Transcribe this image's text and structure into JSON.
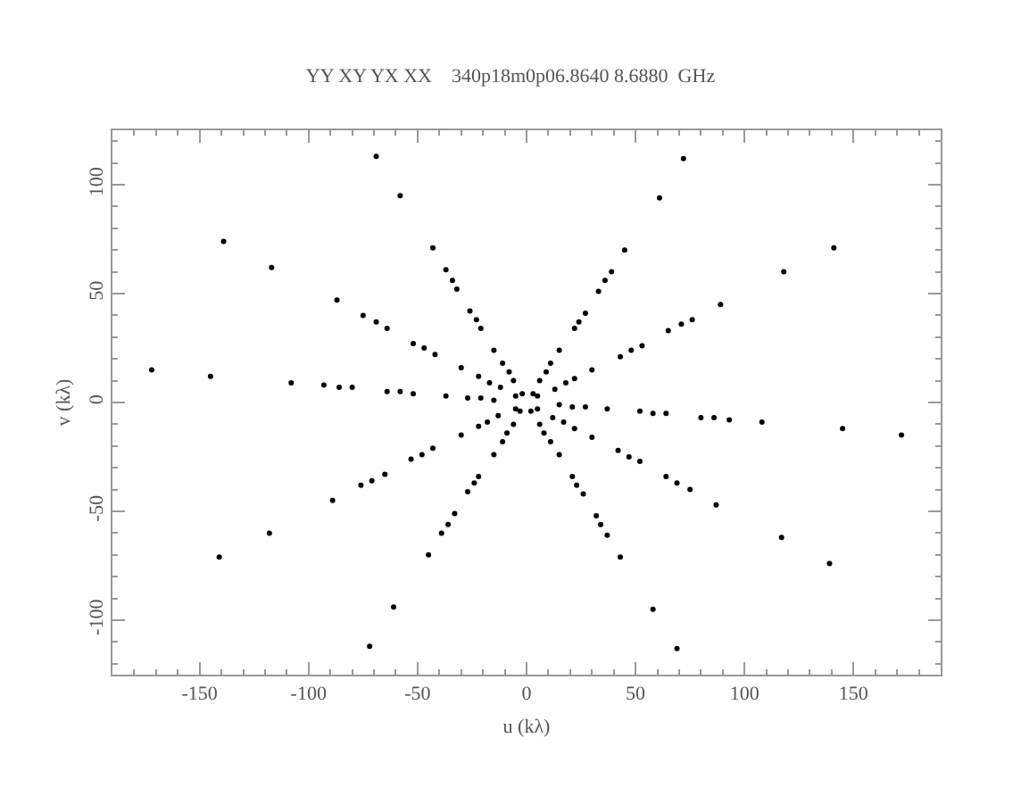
{
  "chart_data": {
    "type": "scatter",
    "title": "YY XY YX XX    340p18m0p06.8640 8.6880  GHz",
    "xlabel": "u (kλ)",
    "ylabel": "v (kλ)",
    "x": [
      -69,
      -58,
      -43,
      -37,
      -34,
      -32,
      -26,
      -23,
      -21,
      -15,
      -11,
      -8,
      -6,
      -5,
      -2,
      -139,
      -117,
      -87,
      -75,
      -69,
      -64,
      -52,
      -47,
      -42,
      -30,
      -22,
      -17,
      -12,
      -172,
      -145,
      -108,
      -93,
      -86,
      -80,
      -64,
      -58,
      -52,
      -37,
      -27,
      -21,
      -15,
      72,
      61,
      45,
      39,
      36,
      33,
      27,
      24,
      22,
      15,
      11,
      9,
      6,
      5,
      3,
      141,
      118,
      89,
      76,
      71,
      65,
      53,
      48,
      43,
      30,
      22,
      18,
      13,
      69,
      58,
      43,
      37,
      34,
      32,
      26,
      23,
      21,
      15,
      11,
      8,
      6,
      5,
      2,
      139,
      117,
      87,
      75,
      69,
      64,
      52,
      47,
      42,
      30,
      22,
      17,
      12,
      172,
      145,
      108,
      93,
      86,
      80,
      64,
      58,
      52,
      37,
      27,
      21,
      15,
      -72,
      -61,
      -45,
      -39,
      -36,
      -33,
      -27,
      -24,
      -22,
      -15,
      -11,
      -9,
      -6,
      -5,
      -3,
      -141,
      -118,
      -89,
      -76,
      -71,
      -65,
      -53,
      -48,
      -43,
      -30,
      -22,
      -18,
      -13
    ],
    "series": [
      {
        "color": "#000000",
        "values": [
          113,
          95,
          71,
          61,
          56,
          52,
          42,
          38,
          34,
          24,
          18,
          14,
          10,
          3,
          4,
          74,
          62,
          47,
          40,
          37,
          34,
          27,
          25,
          22,
          16,
          12,
          9,
          7,
          15,
          12,
          9,
          8,
          7,
          7,
          5,
          5,
          4,
          3,
          2,
          2,
          1,
          112,
          94,
          70,
          60,
          56,
          51,
          41,
          37,
          34,
          24,
          18,
          14,
          10,
          3,
          4,
          71,
          60,
          45,
          38,
          36,
          33,
          26,
          24,
          21,
          15,
          11,
          9,
          6,
          -113,
          -95,
          -71,
          -61,
          -56,
          -52,
          -42,
          -38,
          -34,
          -24,
          -18,
          -14,
          -10,
          -3,
          -4,
          -74,
          -62,
          -47,
          -40,
          -37,
          -34,
          -27,
          -25,
          -22,
          -16,
          -12,
          -9,
          -7,
          -15,
          -12,
          -9,
          -8,
          -7,
          -7,
          -5,
          -5,
          -4,
          -3,
          -2,
          -2,
          -1,
          -112,
          -94,
          -70,
          -60,
          -56,
          -51,
          -41,
          -37,
          -34,
          -24,
          -18,
          -14,
          -10,
          -3,
          -4,
          -71,
          -60,
          -45,
          -38,
          -36,
          -33,
          -26,
          -24,
          -21,
          -15,
          -11,
          -9,
          -6
        ]
      }
    ],
    "xlim": [
      -190,
      190
    ],
    "xticks": [
      -150,
      -100,
      -50,
      0,
      50,
      100,
      150
    ],
    "ylim": [
      -125,
      125
    ],
    "yticks": [
      -100,
      -50,
      0,
      50,
      100
    ],
    "marker": "circle"
  }
}
